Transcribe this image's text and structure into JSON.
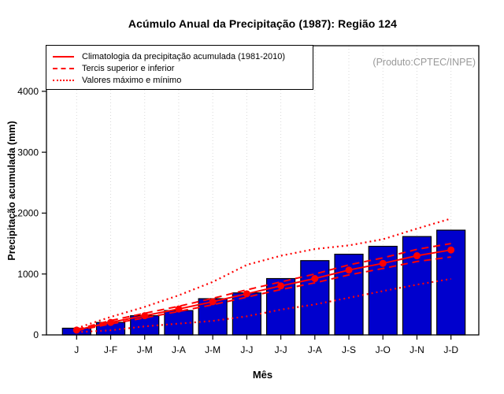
{
  "title": "Acúmulo Anual da Precipitação (1987): Região 124",
  "annotation": "(Produto:CPTEC/INPE)",
  "legend": {
    "items": [
      {
        "label": "Climatologia da precipitação acumulada (1981-2010)",
        "line_style": "solid"
      },
      {
        "label": "Tercis superior e inferior",
        "line_style": "dashed"
      },
      {
        "label": "Valores máximo e mínimo",
        "line_style": "dotted"
      }
    ]
  },
  "colors": {
    "bar_fill": "#0000CD",
    "bar_stroke": "#000000",
    "line_red": "#FF0000",
    "grid": "#D9D9D9",
    "axis": "#000000",
    "annotation_text": "#999999"
  },
  "chart_data": {
    "type": "bar",
    "title": "Acúmulo Anual da Precipitação (1987): Região 124",
    "xlabel": "Mês",
    "ylabel": "Precipitação acumulada (mm)",
    "categories": [
      "J",
      "J-F",
      "J-M",
      "J-A",
      "J-M",
      "J-J",
      "J-J",
      "J-A",
      "J-S",
      "J-O",
      "J-N",
      "J-D"
    ],
    "yticks": [
      0,
      1000,
      2000,
      3000,
      4000
    ],
    "ylim": [
      0,
      4750
    ],
    "grid": "vertical-dotted",
    "legend_position": "top-left",
    "bars": {
      "key": "acumulo-1987",
      "color": "#0000CD",
      "values": [
        110,
        205,
        315,
        400,
        595,
        690,
        925,
        1220,
        1325,
        1455,
        1615,
        1720
      ]
    },
    "series": [
      {
        "key": "climatologia",
        "style": "solid",
        "marker": "circle",
        "values": [
          80,
          205,
          315,
          425,
          545,
          675,
          805,
          925,
          1065,
          1175,
          1300,
          1395
        ]
      },
      {
        "key": "tercil-superior",
        "style": "dashed",
        "values": [
          90,
          235,
          355,
          470,
          600,
          740,
          870,
          1000,
          1150,
          1265,
          1405,
          1500
        ]
      },
      {
        "key": "tercil-inferior",
        "style": "dashed",
        "values": [
          70,
          180,
          280,
          385,
          495,
          620,
          745,
          855,
          985,
          1090,
          1205,
          1280
        ]
      },
      {
        "key": "maximo",
        "style": "dotted",
        "values": [
          110,
          295,
          460,
          650,
          870,
          1150,
          1300,
          1410,
          1470,
          1570,
          1745,
          1910
        ]
      },
      {
        "key": "minimo",
        "style": "dotted",
        "values": [
          45,
          75,
          140,
          185,
          230,
          305,
          415,
          500,
          610,
          720,
          825,
          920
        ]
      }
    ]
  }
}
